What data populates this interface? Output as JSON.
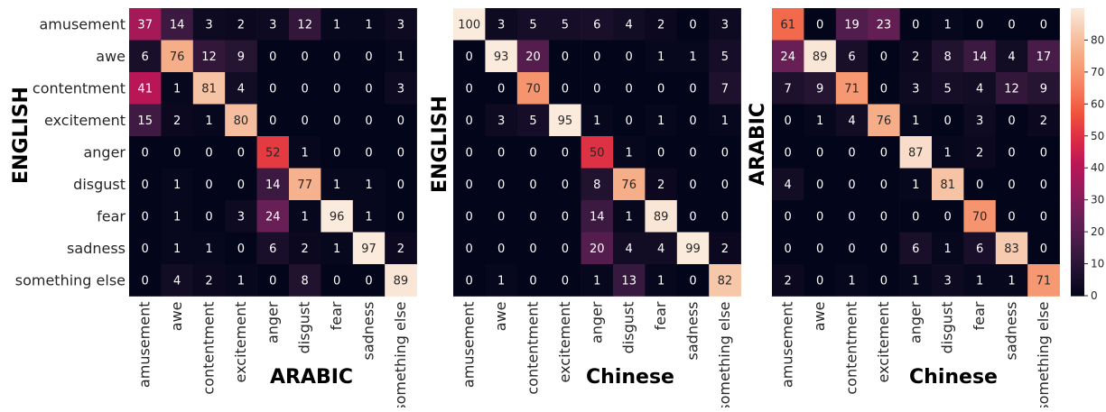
{
  "chart_data": [
    {
      "type": "heatmap",
      "ylabel": "ENGLISH",
      "xlabel": "ARABIC",
      "rows": [
        "amusement",
        "awe",
        "contentment",
        "excitement",
        "anger",
        "disgust",
        "fear",
        "sadness",
        "something else"
      ],
      "cols": [
        "amusement",
        "awe",
        "contentment",
        "excitement",
        "anger",
        "disgust",
        "fear",
        "sadness",
        "something else"
      ],
      "values": [
        [
          37,
          14,
          3,
          2,
          3,
          12,
          1,
          1,
          3
        ],
        [
          6,
          76,
          12,
          9,
          0,
          0,
          0,
          0,
          1
        ],
        [
          41,
          1,
          81,
          4,
          0,
          0,
          0,
          0,
          3
        ],
        [
          15,
          2,
          1,
          80,
          0,
          0,
          0,
          0,
          0
        ],
        [
          0,
          0,
          0,
          0,
          52,
          1,
          0,
          0,
          0
        ],
        [
          0,
          1,
          0,
          0,
          14,
          77,
          1,
          1,
          0
        ],
        [
          0,
          1,
          0,
          3,
          24,
          1,
          96,
          1,
          0
        ],
        [
          0,
          1,
          1,
          0,
          6,
          2,
          1,
          97,
          2
        ],
        [
          0,
          4,
          2,
          1,
          0,
          8,
          0,
          0,
          89
        ]
      ]
    },
    {
      "type": "heatmap",
      "ylabel": "ENGLISH",
      "xlabel": "Chinese",
      "rows": [
        "amusement",
        "awe",
        "contentment",
        "excitement",
        "anger",
        "disgust",
        "fear",
        "sadness",
        "something else"
      ],
      "cols": [
        "amusement",
        "awe",
        "contentment",
        "excitement",
        "anger",
        "disgust",
        "fear",
        "sadness",
        "something else"
      ],
      "values": [
        [
          100,
          3,
          5,
          5,
          6,
          4,
          2,
          0,
          3
        ],
        [
          0,
          93,
          20,
          0,
          0,
          0,
          1,
          1,
          5
        ],
        [
          0,
          0,
          70,
          0,
          0,
          0,
          0,
          0,
          7
        ],
        [
          0,
          3,
          5,
          95,
          1,
          0,
          1,
          0,
          1
        ],
        [
          0,
          0,
          0,
          0,
          50,
          1,
          0,
          0,
          0
        ],
        [
          0,
          0,
          0,
          0,
          8,
          76,
          2,
          0,
          0
        ],
        [
          0,
          0,
          0,
          0,
          14,
          1,
          89,
          0,
          0
        ],
        [
          0,
          0,
          0,
          0,
          20,
          4,
          4,
          99,
          2
        ],
        [
          0,
          1,
          0,
          0,
          1,
          13,
          1,
          0,
          82
        ]
      ]
    },
    {
      "type": "heatmap",
      "ylabel": "ARABIC",
      "xlabel": "Chinese",
      "rows": [
        "amusement",
        "awe",
        "contentment",
        "excitement",
        "anger",
        "disgust",
        "fear",
        "sadness",
        "something else"
      ],
      "cols": [
        "amusement",
        "awe",
        "contentment",
        "excitement",
        "anger",
        "disgust",
        "fear",
        "sadness",
        "something else"
      ],
      "values": [
        [
          61,
          0,
          19,
          23,
          0,
          1,
          0,
          0,
          0
        ],
        [
          24,
          89,
          6,
          0,
          2,
          8,
          14,
          4,
          17
        ],
        [
          7,
          9,
          71,
          0,
          3,
          5,
          4,
          12,
          9
        ],
        [
          0,
          1,
          4,
          76,
          1,
          0,
          3,
          0,
          2
        ],
        [
          0,
          0,
          0,
          0,
          87,
          1,
          2,
          0,
          0
        ],
        [
          4,
          0,
          0,
          0,
          1,
          81,
          0,
          0,
          0
        ],
        [
          0,
          0,
          0,
          0,
          0,
          0,
          70,
          0,
          0
        ],
        [
          0,
          0,
          0,
          0,
          6,
          1,
          6,
          83,
          0
        ],
        [
          2,
          0,
          1,
          0,
          1,
          3,
          1,
          1,
          71
        ]
      ]
    }
  ],
  "colorbar": {
    "min": 0,
    "max": 90,
    "ticks": [
      0,
      10,
      20,
      30,
      40,
      50,
      60,
      70,
      80
    ],
    "colormap": "rocket",
    "stops": [
      "#03051a",
      "#221331",
      "#451c47",
      "#6a1f56",
      "#921c5b",
      "#b91657",
      "#dd2c45",
      "#f0553d",
      "#f6805e",
      "#f6a47c",
      "#f6c6a8",
      "#faebdd"
    ]
  }
}
